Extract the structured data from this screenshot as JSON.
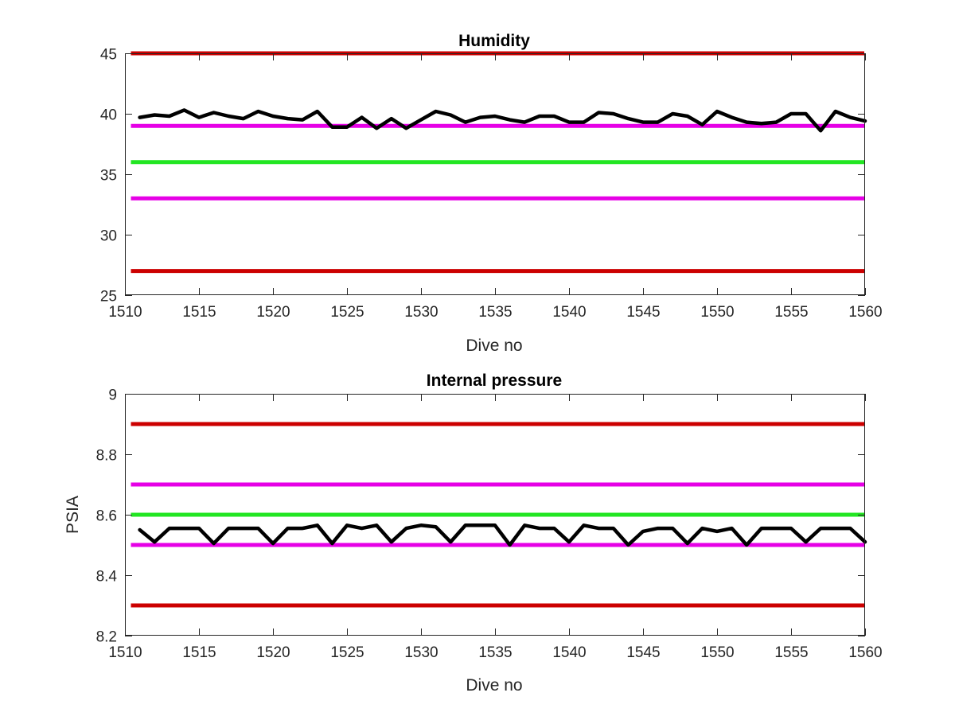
{
  "chart_data": [
    {
      "type": "line",
      "title": "Humidity",
      "xlabel": "Dive no",
      "ylabel": "",
      "xlim": [
        1510,
        1560
      ],
      "ylim": [
        25,
        45
      ],
      "xticks": [
        1510,
        1515,
        1520,
        1525,
        1530,
        1535,
        1540,
        1545,
        1550,
        1555,
        1560
      ],
      "xtick_labels": [
        "1510",
        "1515",
        "1520",
        "1525",
        "1530",
        "1535",
        "1540",
        "1545",
        "1550",
        "1555",
        "1560"
      ],
      "yticks": [
        25,
        30,
        35,
        40,
        45
      ],
      "ytick_labels": [
        "25",
        "30",
        "35",
        "40",
        "45"
      ],
      "grid": false,
      "reference_lines": [
        {
          "y": 45,
          "color": "#cc0000"
        },
        {
          "y": 39,
          "color": "#e600e6"
        },
        {
          "y": 36,
          "color": "#22e622"
        },
        {
          "y": 33,
          "color": "#e600e6"
        },
        {
          "y": 27,
          "color": "#cc0000"
        }
      ],
      "series": [
        {
          "color": "#000000",
          "x": [
            1511,
            1512,
            1513,
            1514,
            1515,
            1516,
            1517,
            1518,
            1519,
            1520,
            1521,
            1522,
            1523,
            1524,
            1525,
            1526,
            1527,
            1528,
            1529,
            1530,
            1531,
            1532,
            1533,
            1534,
            1535,
            1536,
            1537,
            1538,
            1539,
            1540,
            1541,
            1542,
            1543,
            1544,
            1545,
            1546,
            1547,
            1548,
            1549,
            1550,
            1551,
            1552,
            1553,
            1554,
            1555,
            1556,
            1557,
            1558,
            1559,
            1560
          ],
          "values": [
            39.7,
            39.9,
            39.8,
            40.3,
            39.7,
            40.1,
            39.8,
            39.6,
            40.2,
            39.8,
            39.6,
            39.5,
            40.2,
            38.9,
            38.9,
            39.7,
            38.8,
            39.6,
            38.8,
            39.5,
            40.2,
            39.9,
            39.3,
            39.7,
            39.8,
            39.5,
            39.3,
            39.8,
            39.8,
            39.3,
            39.3,
            40.1,
            40.0,
            39.6,
            39.3,
            39.3,
            40.0,
            39.8,
            39.1,
            40.2,
            39.7,
            39.3,
            39.2,
            39.3,
            40.0,
            40.0,
            38.6,
            40.2,
            39.7,
            39.4
          ]
        }
      ]
    },
    {
      "type": "line",
      "title": "Internal pressure",
      "xlabel": "Dive no",
      "ylabel": "PSIA",
      "xlim": [
        1510,
        1560
      ],
      "ylim": [
        8.2,
        9.0
      ],
      "xticks": [
        1510,
        1515,
        1520,
        1525,
        1530,
        1535,
        1540,
        1545,
        1550,
        1555,
        1560
      ],
      "xtick_labels": [
        "1510",
        "1515",
        "1520",
        "1525",
        "1530",
        "1535",
        "1540",
        "1545",
        "1550",
        "1555",
        "1560"
      ],
      "yticks": [
        8.2,
        8.4,
        8.6,
        8.8,
        9.0
      ],
      "ytick_labels": [
        "8.2",
        "8.4",
        "8.6",
        "8.8",
        "9"
      ],
      "grid": false,
      "reference_lines": [
        {
          "y": 8.9,
          "color": "#cc0000"
        },
        {
          "y": 8.7,
          "color": "#e600e6"
        },
        {
          "y": 8.6,
          "color": "#22e622"
        },
        {
          "y": 8.5,
          "color": "#e600e6"
        },
        {
          "y": 8.3,
          "color": "#cc0000"
        }
      ],
      "series": [
        {
          "color": "#000000",
          "x": [
            1511,
            1512,
            1513,
            1514,
            1515,
            1516,
            1517,
            1518,
            1519,
            1520,
            1521,
            1522,
            1523,
            1524,
            1525,
            1526,
            1527,
            1528,
            1529,
            1530,
            1531,
            1532,
            1533,
            1534,
            1535,
            1536,
            1537,
            1538,
            1539,
            1540,
            1541,
            1542,
            1543,
            1544,
            1545,
            1546,
            1547,
            1548,
            1549,
            1550,
            1551,
            1552,
            1553,
            1554,
            1555,
            1556,
            1557,
            1558,
            1559,
            1560
          ],
          "values": [
            8.55,
            8.51,
            8.555,
            8.555,
            8.555,
            8.505,
            8.555,
            8.555,
            8.555,
            8.505,
            8.555,
            8.555,
            8.565,
            8.505,
            8.565,
            8.555,
            8.565,
            8.51,
            8.555,
            8.565,
            8.56,
            8.51,
            8.565,
            8.565,
            8.565,
            8.5,
            8.565,
            8.555,
            8.555,
            8.51,
            8.565,
            8.555,
            8.555,
            8.5,
            8.545,
            8.555,
            8.555,
            8.505,
            8.555,
            8.545,
            8.555,
            8.5,
            8.555,
            8.555,
            8.555,
            8.51,
            8.555,
            8.555,
            8.555,
            8.51
          ]
        }
      ]
    }
  ]
}
